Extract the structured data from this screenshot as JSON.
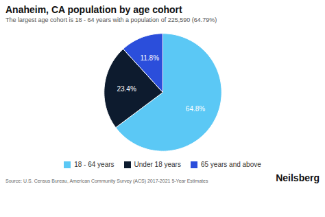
{
  "chart_data": {
    "type": "pie",
    "title": "Anaheim, CA population by age cohort",
    "subtitle": "The largest age cohort is 18 - 64 years with a population of 225,590 (64.79%)",
    "categories": [
      "18 - 64 years",
      "Under 18 years",
      "65 years and above"
    ],
    "values": [
      64.8,
      23.4,
      11.8
    ],
    "value_labels": [
      "64.8%",
      "23.4%",
      "11.8%"
    ],
    "colors": [
      "#5BC8F5",
      "#0D1B2E",
      "#2B4EDB"
    ],
    "data_labels": true,
    "legend": "bottom",
    "annotations": [
      "Source: U.S. Census Bureau, American Community Survey (ACS) 2017-2021 5-Year Estimates",
      "Neilsberg"
    ]
  }
}
